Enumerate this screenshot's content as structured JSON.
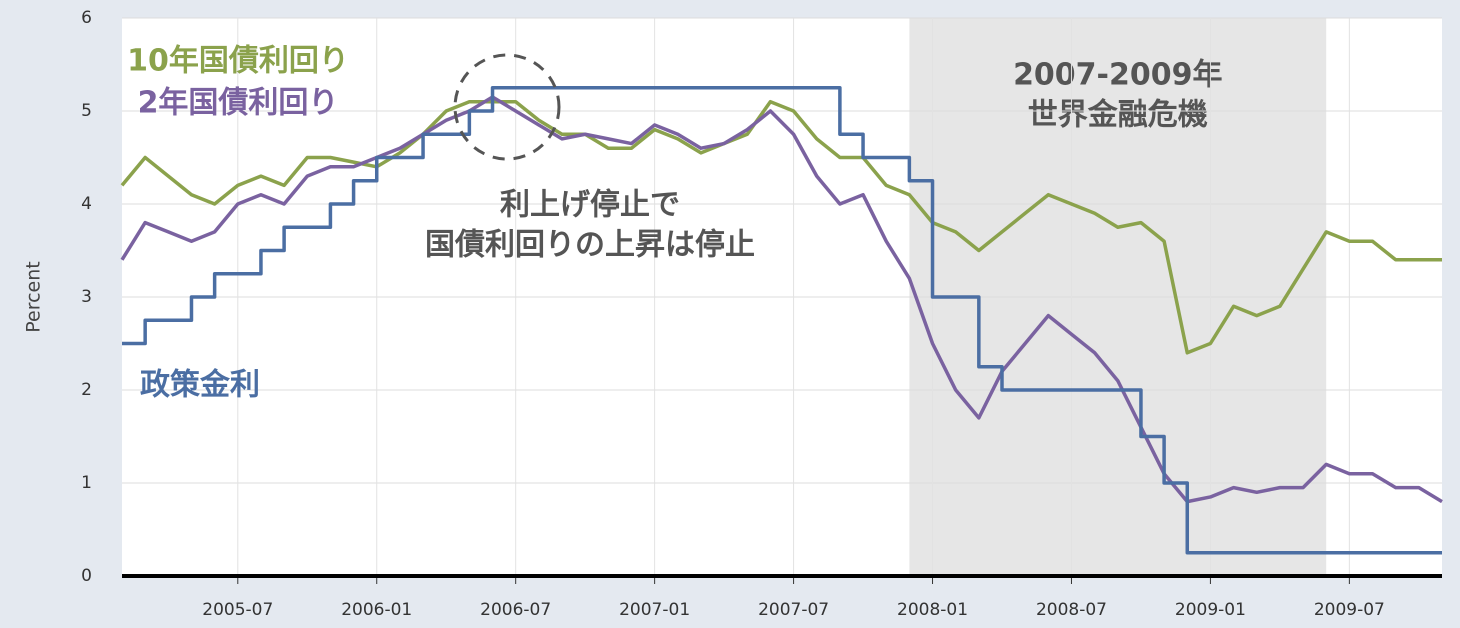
{
  "chart_data": {
    "type": "line",
    "y_label": "Percent",
    "x": [
      "2005-02",
      "2005-03",
      "2005-04",
      "2005-05",
      "2005-06",
      "2005-07",
      "2005-08",
      "2005-09",
      "2005-10",
      "2005-11",
      "2005-12",
      "2006-01",
      "2006-02",
      "2006-03",
      "2006-04",
      "2006-05",
      "2006-06",
      "2006-07",
      "2006-08",
      "2006-09",
      "2006-10",
      "2006-11",
      "2006-12",
      "2007-01",
      "2007-02",
      "2007-03",
      "2007-04",
      "2007-05",
      "2007-06",
      "2007-07",
      "2007-08",
      "2007-09",
      "2007-10",
      "2007-11",
      "2007-12",
      "2008-01",
      "2008-02",
      "2008-03",
      "2008-04",
      "2008-05",
      "2008-06",
      "2008-07",
      "2008-08",
      "2008-09",
      "2008-10",
      "2008-11",
      "2008-12",
      "2009-01",
      "2009-02",
      "2009-03",
      "2009-04",
      "2009-05",
      "2009-06",
      "2009-07",
      "2009-08",
      "2009-09",
      "2009-10",
      "2009-11"
    ],
    "series": [
      {
        "name": "10年国債利回り",
        "color": "#8ba24c",
        "values": [
          4.2,
          4.5,
          4.3,
          4.1,
          4.0,
          4.2,
          4.3,
          4.2,
          4.5,
          4.5,
          4.45,
          4.4,
          4.55,
          4.75,
          5.0,
          5.1,
          5.1,
          5.1,
          4.9,
          4.75,
          4.75,
          4.6,
          4.6,
          4.8,
          4.7,
          4.55,
          4.65,
          4.75,
          5.1,
          5.0,
          4.7,
          4.5,
          4.5,
          4.2,
          4.1,
          3.8,
          3.7,
          3.5,
          3.7,
          3.9,
          4.1,
          4.0,
          3.9,
          3.75,
          3.8,
          3.6,
          2.4,
          2.5,
          2.9,
          2.8,
          2.9,
          3.3,
          3.7,
          3.6,
          3.6,
          3.4,
          3.4,
          3.4
        ]
      },
      {
        "name": "2年国債利回り",
        "color": "#7a62a0",
        "values": [
          3.4,
          3.8,
          3.7,
          3.6,
          3.7,
          4.0,
          4.1,
          4.0,
          4.3,
          4.4,
          4.4,
          4.5,
          4.6,
          4.75,
          4.9,
          5.0,
          5.15,
          5.0,
          4.85,
          4.7,
          4.75,
          4.7,
          4.65,
          4.85,
          4.75,
          4.6,
          4.65,
          4.8,
          5.0,
          4.75,
          4.3,
          4.0,
          4.1,
          3.6,
          3.2,
          2.5,
          2.0,
          1.7,
          2.2,
          2.5,
          2.8,
          2.6,
          2.4,
          2.1,
          1.6,
          1.1,
          0.8,
          0.85,
          0.95,
          0.9,
          0.95,
          0.95,
          1.2,
          1.1,
          1.1,
          0.95,
          0.95,
          0.8
        ]
      },
      {
        "name": "政策金利",
        "color": "#4b6ea3",
        "step": true,
        "values": [
          2.5,
          2.75,
          2.75,
          3.0,
          3.25,
          3.25,
          3.5,
          3.75,
          3.75,
          4.0,
          4.25,
          4.5,
          4.5,
          4.75,
          4.75,
          5.0,
          5.25,
          5.25,
          5.25,
          5.25,
          5.25,
          5.25,
          5.25,
          5.25,
          5.25,
          5.25,
          5.25,
          5.25,
          5.25,
          5.25,
          5.25,
          4.75,
          4.5,
          4.5,
          4.25,
          3.0,
          3.0,
          2.25,
          2.0,
          2.0,
          2.0,
          2.0,
          2.0,
          2.0,
          1.5,
          1.0,
          0.25,
          0.25,
          0.25,
          0.25,
          0.25,
          0.25,
          0.25,
          0.25,
          0.25,
          0.25,
          0.25,
          0.25
        ]
      }
    ],
    "xlim": [
      "2005-02",
      "2009-11"
    ],
    "xticks": [
      "2005-07",
      "2006-01",
      "2006-07",
      "2007-01",
      "2007-07",
      "2008-01",
      "2008-07",
      "2009-01",
      "2009-07"
    ],
    "ylim": [
      0,
      6
    ],
    "yticks": [
      0,
      1,
      2,
      3,
      4,
      5,
      6
    ],
    "grid": true,
    "shade": {
      "start": "2007-12",
      "end": "2009-06",
      "label": [
        "2007-2009年",
        "世界金融危機"
      ]
    },
    "annotation": [
      "利上げ停止で",
      "国債利回りの上昇は停止"
    ]
  }
}
